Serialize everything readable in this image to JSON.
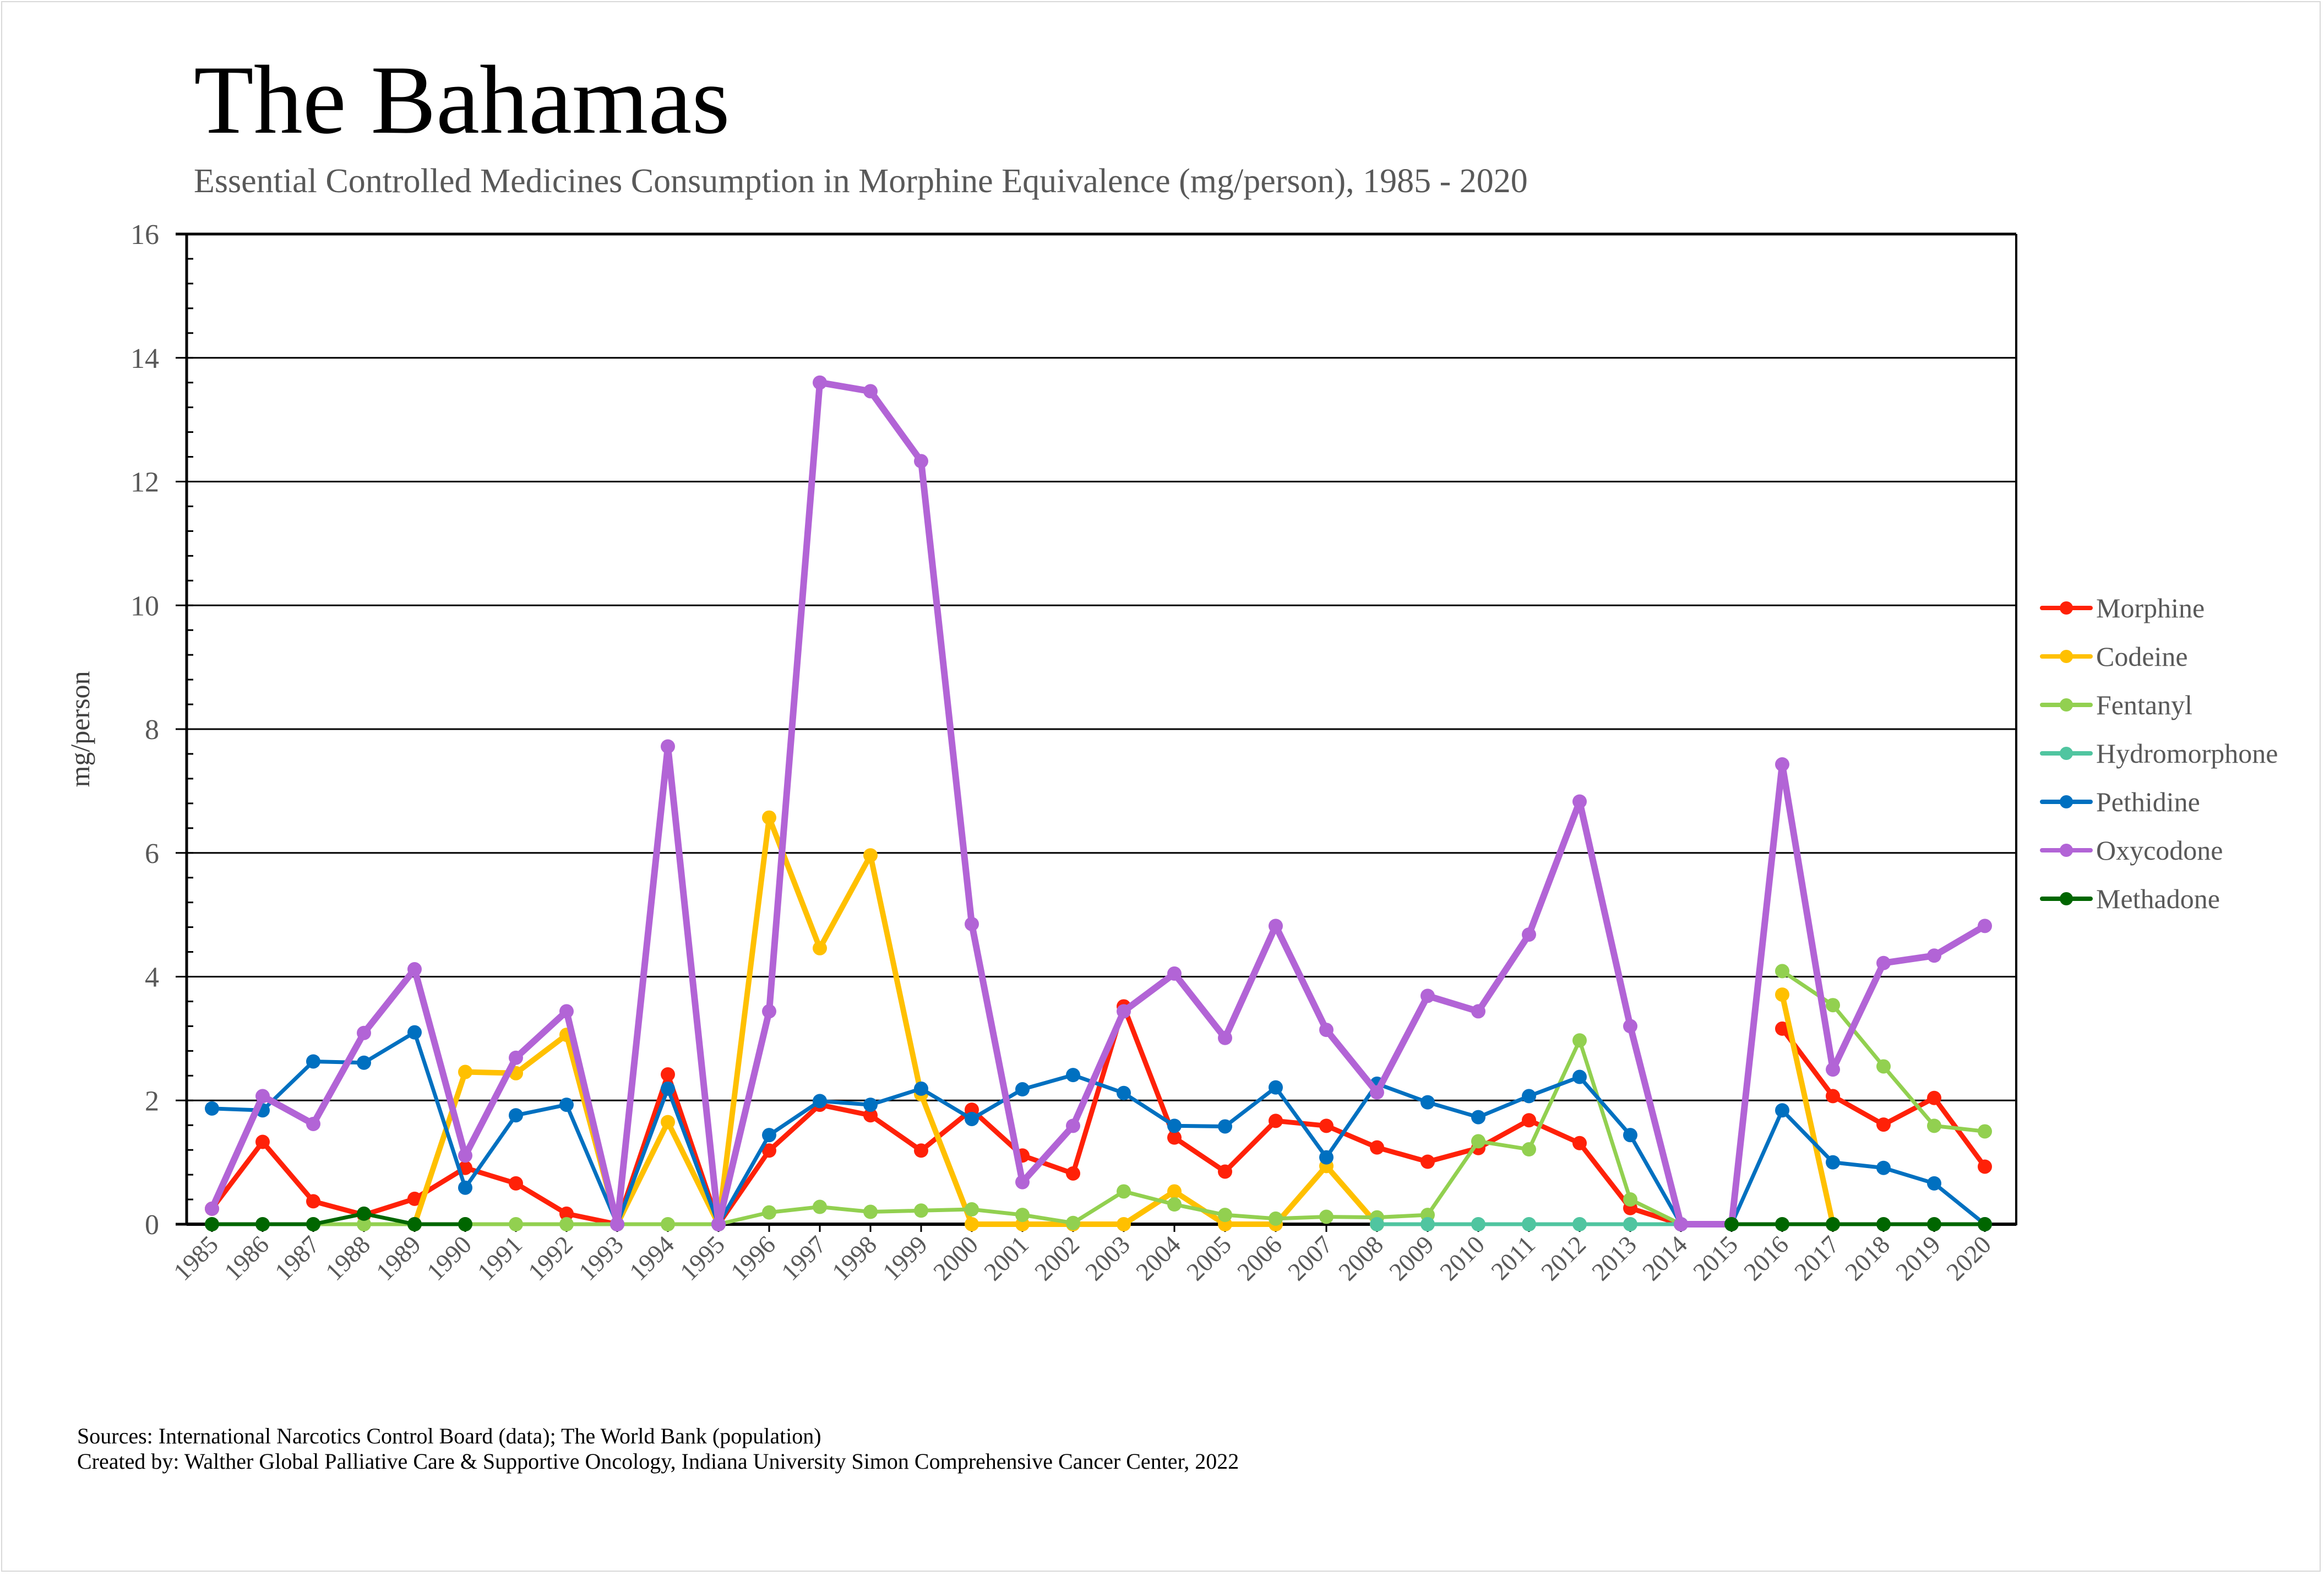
{
  "chart_data": {
    "type": "line",
    "title": "The Bahamas",
    "subtitle": "Essential Controlled Medicines Consumption in Morphine Equivalence (mg/person), 1985 - 2020",
    "xlabel": "",
    "ylabel": "mg/person",
    "ylim": [
      0,
      16
    ],
    "yticks": [
      "0",
      "2",
      "4",
      "6",
      "8",
      "10",
      "12",
      "14",
      "16"
    ],
    "grid": true,
    "legend_position": "right",
    "x": [
      "1985",
      "1986",
      "1987",
      "1988",
      "1989",
      "1990",
      "1991",
      "1992",
      "1993",
      "1994",
      "1995",
      "1996",
      "1997",
      "1998",
      "1999",
      "2000",
      "2001",
      "2002",
      "2003",
      "2004",
      "2005",
      "2006",
      "2007",
      "2008",
      "2009",
      "2010",
      "2011",
      "2012",
      "2013",
      "2014",
      "2015",
      "2016",
      "2017",
      "2018",
      "2019",
      "2020"
    ],
    "series": [
      {
        "name": "Morphine",
        "color": "#ff2108",
        "values": [
          0.25,
          1.33,
          0.37,
          0.15,
          0.41,
          0.91,
          0.66,
          0.17,
          0,
          2.42,
          0,
          1.19,
          1.93,
          1.76,
          1.19,
          1.85,
          1.11,
          0.82,
          3.52,
          1.4,
          0.85,
          1.67,
          1.59,
          1.24,
          1.01,
          1.23,
          1.68,
          1.31,
          0.26,
          0,
          null,
          3.16,
          2.07,
          1.61,
          2.04,
          0.93
        ]
      },
      {
        "name": "Codeine",
        "color": "#ffc000",
        "values": [
          null,
          null,
          null,
          null,
          0,
          2.46,
          2.44,
          3.06,
          0,
          1.65,
          0,
          6.57,
          4.46,
          5.96,
          2.1,
          0,
          0,
          0,
          0,
          0.53,
          0,
          0,
          0.94,
          0,
          null,
          null,
          null,
          null,
          null,
          null,
          null,
          3.71,
          0,
          null,
          null,
          null
        ]
      },
      {
        "name": "Fentanyl",
        "color": "#92d050",
        "values": [
          null,
          null,
          0,
          0,
          0,
          0,
          0,
          0,
          0,
          0,
          0,
          0.19,
          0.28,
          0.2,
          0.22,
          0.24,
          0.15,
          0.02,
          0.53,
          0.32,
          0.15,
          0.09,
          0.12,
          0.11,
          0.15,
          1.34,
          1.21,
          2.97,
          0.4,
          0,
          null,
          4.09,
          3.54,
          2.55,
          1.59,
          1.5
        ]
      },
      {
        "name": "Hydromorphone",
        "color": "#50c5a0",
        "values": [
          null,
          null,
          null,
          null,
          null,
          null,
          null,
          null,
          null,
          null,
          null,
          null,
          null,
          null,
          null,
          null,
          null,
          null,
          null,
          null,
          null,
          null,
          null,
          0,
          0,
          0,
          0,
          0,
          0,
          0,
          null,
          null,
          null,
          null,
          null,
          null
        ]
      },
      {
        "name": "Pethidine",
        "color": "#0070c0",
        "values": [
          1.87,
          1.84,
          2.63,
          2.61,
          3.1,
          0.59,
          1.76,
          1.93,
          0,
          2.19,
          0,
          1.44,
          1.99,
          1.93,
          2.19,
          1.7,
          2.18,
          2.41,
          2.12,
          1.59,
          1.58,
          2.21,
          1.08,
          2.27,
          1.97,
          1.73,
          2.07,
          2.38,
          1.44,
          0,
          0,
          1.84,
          1.0,
          0.91,
          0.66,
          0
        ]
      },
      {
        "name": "Oxycodone",
        "color": "#b264d6",
        "values": [
          0.25,
          2.07,
          1.62,
          3.09,
          4.12,
          1.11,
          2.69,
          3.44,
          0,
          7.72,
          0,
          3.44,
          13.6,
          13.46,
          12.33,
          4.85,
          0.68,
          1.59,
          3.44,
          4.05,
          3.01,
          4.82,
          3.14,
          2.13,
          3.69,
          3.44,
          4.68,
          6.83,
          3.2,
          0,
          0,
          7.43,
          2.5,
          4.22,
          4.34,
          4.82
        ]
      },
      {
        "name": "Methadone",
        "color": "#006600",
        "values": [
          0,
          0,
          0,
          0.17,
          0,
          0,
          null,
          null,
          null,
          null,
          null,
          null,
          null,
          null,
          null,
          null,
          null,
          null,
          null,
          null,
          null,
          null,
          null,
          null,
          null,
          null,
          null,
          null,
          null,
          null,
          0,
          0,
          0,
          0,
          0,
          0
        ]
      }
    ]
  },
  "footer": {
    "sources": "Sources: International Narcotics Control Board (data); The World Bank (population)",
    "created_by": "Created by: Walther Global Palliative Care & Supportive Oncology, Indiana University Simon Comprehensive Cancer Center, 2022"
  }
}
